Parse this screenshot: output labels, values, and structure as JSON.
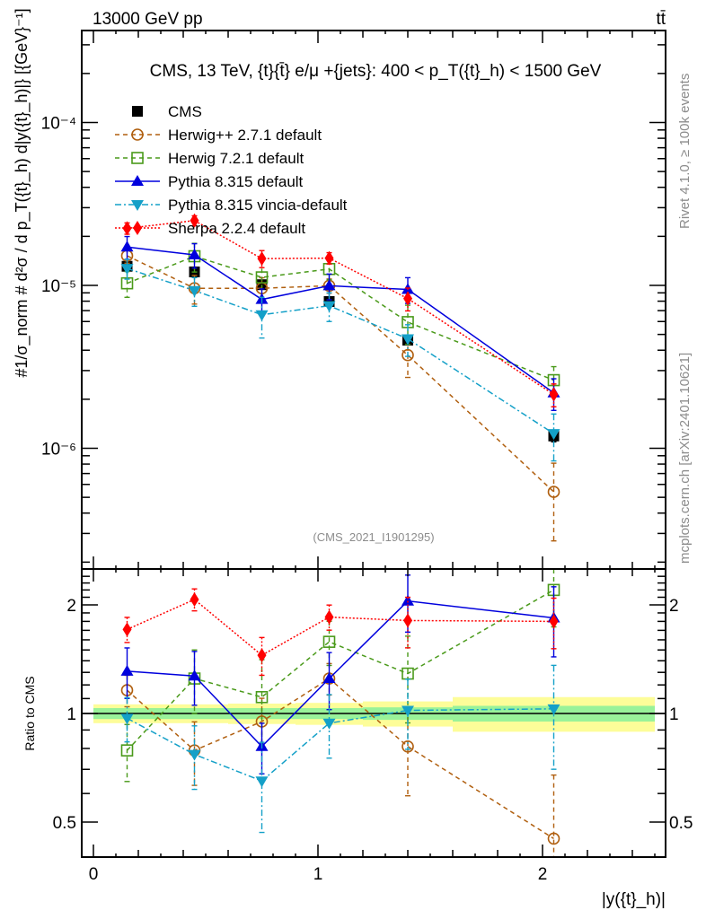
{
  "header": {
    "left": "13000 GeV pp",
    "right": "tt̄"
  },
  "side_labels": {
    "rivet": "Rivet 4.1.0, ≥ 100k events",
    "mcplots": "mcplots.cern.ch [arXiv:2401.10621]"
  },
  "chart_data": [
    {
      "type": "line",
      "panel": "main",
      "title": "CMS, 13 TeV, {t}{t̄} e/μ +{jets}: 400 <  p_T({t}_h) < 1500 GeV",
      "analysis_id": "(CMS_2021_I1901295)",
      "ylabel": "#1/σ_norm # d²σ / d p_T({t}_h) d|y({t}_h)|} [{GeV}⁻¹]",
      "yscale": "log",
      "ylim": [
        3.7e-07,
        0.00037
      ],
      "yticks": [
        {
          "value": 1e-06,
          "label": "10⁻⁶"
        },
        {
          "value": 1e-05,
          "label": "10⁻⁵"
        },
        {
          "value": 0.0001,
          "label": "10⁻⁴"
        }
      ],
      "xlim": [
        -0.05,
        2.55
      ],
      "x": [
        0.15,
        0.45,
        0.75,
        1.05,
        1.4,
        2.05
      ],
      "bin_edges": [
        0,
        0.3,
        0.6,
        0.9,
        1.2,
        1.6,
        2.5
      ],
      "legend_position": "top-left",
      "series": [
        {
          "name": "CMS",
          "key": "cms",
          "color": "#000000",
          "marker": "square-filled",
          "line": "none",
          "values": [
            1.31e-05,
            1.21e-05,
            1.01e-05,
            7.96e-06,
            4.61e-06,
            1.19e-06
          ],
          "rel_err": [
            0.03,
            0.03,
            0.04,
            0.05,
            0.06,
            0.08
          ]
        },
        {
          "name": "Herwig++ 2.7.1 default",
          "key": "herwigpp",
          "color": "#b05f0f",
          "marker": "circle-open",
          "line": "dashed",
          "values": [
            1.52e-05,
            9.6e-06,
            9.6e-06,
            9.95e-06,
            3.73e-06,
            5.4e-07
          ],
          "rel_err": [
            0.1,
            0.2,
            0.16,
            0.1,
            0.27,
            0.5
          ]
        },
        {
          "name": "Herwig 7.2.1 default",
          "key": "herwig7",
          "color": "#4a9a1a",
          "marker": "square-open",
          "line": "dashed",
          "values": [
            1.03e-05,
            1.51e-05,
            1.12e-05,
            1.26e-05,
            5.95e-06,
            2.62e-06
          ],
          "rel_err": [
            0.18,
            0.2,
            0.27,
            0.14,
            0.27,
            0.21
          ]
        },
        {
          "name": "Pythia 8.315 default",
          "key": "pythia",
          "color": "#0000dd",
          "marker": "triangle-up",
          "line": "solid",
          "values": [
            1.72e-05,
            1.54e-05,
            8.2e-06,
            9.95e-06,
            9.45e-06,
            2.19e-06
          ],
          "rel_err": [
            0.16,
            0.17,
            0.16,
            0.18,
            0.18,
            0.22
          ]
        },
        {
          "name": "Pythia 8.315 vincia-default",
          "key": "vincia",
          "color": "#14a0c8",
          "marker": "triangle-down",
          "line": "dashdot",
          "values": [
            1.27e-05,
            9.3e-06,
            6.6e-06,
            7.5e-06,
            4.7e-06,
            1.23e-06
          ],
          "rel_err": [
            0.14,
            0.2,
            0.28,
            0.2,
            0.22,
            0.32
          ]
        },
        {
          "name": "Sherpa 2.2.4 default",
          "key": "sherpa",
          "color": "#ff0000",
          "marker": "diamond-filled",
          "line": "dotted",
          "values": [
            2.24e-05,
            2.5e-05,
            1.46e-05,
            1.47e-05,
            8.3e-06,
            2.14e-06
          ],
          "rel_err": [
            0.08,
            0.07,
            0.12,
            0.08,
            0.16,
            0.16
          ]
        }
      ]
    },
    {
      "type": "line",
      "panel": "ratio",
      "ylabel": "Ratio to CMS",
      "xlabel": "|y({t}_h)|",
      "yscale": "log",
      "ylim": [
        0.4,
        2.4
      ],
      "yticks": [
        {
          "value": 0.5,
          "label": "0.5"
        },
        {
          "value": 1,
          "label": "1"
        },
        {
          "value": 2,
          "label": "2"
        }
      ],
      "xticks": [
        {
          "value": 0,
          "label": "0"
        },
        {
          "value": 1,
          "label": "1"
        },
        {
          "value": 2,
          "label": "2"
        }
      ],
      "x": [
        0.15,
        0.45,
        0.75,
        1.05,
        1.4,
        2.05
      ],
      "bands": {
        "stat_color": "#99f299",
        "total_color": "#fdfd99",
        "stat_half_width": [
          0.035,
          0.035,
          0.035,
          0.035,
          0.04,
          0.05
        ],
        "total_half_width": [
          0.06,
          0.06,
          0.065,
          0.07,
          0.08,
          0.11
        ]
      },
      "series": [
        {
          "key": "herwigpp",
          "values": [
            1.16,
            0.79,
            0.95,
            1.25,
            0.81,
            0.45
          ]
        },
        {
          "key": "herwig7",
          "values": [
            0.79,
            1.25,
            1.11,
            1.58,
            1.29,
            2.2
          ]
        },
        {
          "key": "pythia",
          "values": [
            1.31,
            1.27,
            0.81,
            1.25,
            2.05,
            1.84
          ]
        },
        {
          "key": "vincia",
          "values": [
            0.97,
            0.77,
            0.65,
            0.94,
            1.02,
            1.03
          ]
        },
        {
          "key": "sherpa",
          "values": [
            1.71,
            2.07,
            1.45,
            1.85,
            1.81,
            1.8
          ]
        }
      ]
    }
  ]
}
